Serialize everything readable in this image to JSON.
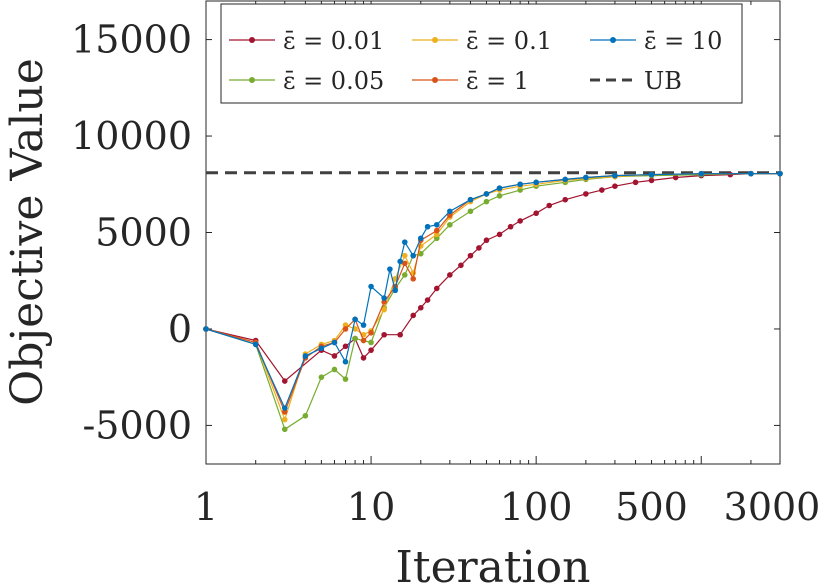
{
  "chart_data": {
    "type": "line",
    "xscale": "log",
    "xlim": [
      1,
      3000
    ],
    "ylim": [
      -7000,
      17000
    ],
    "xticks": [
      1,
      10,
      100,
      500,
      3000
    ],
    "xtick_labels": [
      "1",
      "10",
      "100",
      "500",
      "3000"
    ],
    "yticks": [
      -5000,
      0,
      5000,
      10000,
      15000
    ],
    "ytick_labels": [
      "-5000",
      "0",
      "5000",
      "10000",
      "15000"
    ],
    "xlabel": "Iteration",
    "ylabel": "Objective Value",
    "upper_bound": {
      "name": "UB",
      "value": 8100,
      "color": "#404040"
    },
    "series": [
      {
        "name": "ε̄ = 0.01",
        "color": "#A2142F",
        "x": [
          1,
          2,
          3,
          5,
          6,
          7,
          8,
          9,
          10,
          12,
          15,
          18,
          20,
          22,
          25,
          30,
          35,
          40,
          45,
          50,
          60,
          70,
          80,
          100,
          120,
          150,
          200,
          250,
          300,
          400,
          500,
          700,
          1000,
          1500,
          2000,
          3000
        ],
        "values": [
          0,
          -600,
          -2700,
          -1100,
          -1400,
          -900,
          -500,
          -1500,
          -1100,
          -300,
          -300,
          700,
          1100,
          1500,
          2100,
          2800,
          3300,
          3800,
          4200,
          4600,
          4900,
          5300,
          5600,
          6000,
          6400,
          6700,
          7000,
          7200,
          7400,
          7600,
          7700,
          7850,
          7950,
          8000,
          8050,
          8050
        ]
      },
      {
        "name": "ε̄ = 0.05",
        "color": "#77AC30",
        "x": [
          1,
          2,
          3,
          4,
          5,
          6,
          7,
          8,
          10,
          12,
          14,
          16,
          18,
          20,
          25,
          30,
          40,
          50,
          60,
          80,
          100,
          150,
          200,
          300,
          500,
          1000,
          2000,
          3000
        ],
        "values": [
          0,
          -800,
          -5200,
          -4500,
          -2500,
          -2100,
          -2600,
          -500,
          -700,
          1100,
          2100,
          2800,
          3800,
          3900,
          4700,
          5400,
          6100,
          6600,
          6900,
          7200,
          7400,
          7600,
          7750,
          7900,
          7950,
          8000,
          8050,
          8050
        ]
      },
      {
        "name": "ε̄ = 0.1",
        "color": "#EDB120",
        "x": [
          1,
          2,
          3,
          4,
          5,
          6,
          7,
          8,
          9,
          10,
          12,
          14,
          16,
          18,
          20,
          25,
          30,
          40,
          50,
          60,
          80,
          100,
          150,
          200,
          300,
          500,
          1000,
          2000,
          3000
        ],
        "values": [
          0,
          -700,
          -4700,
          -1300,
          -800,
          -600,
          200,
          0,
          -300,
          -100,
          1000,
          2600,
          3800,
          2900,
          4300,
          4900,
          5800,
          6600,
          7000,
          7200,
          7400,
          7500,
          7700,
          7800,
          7900,
          8000,
          8050,
          8050,
          8050
        ]
      },
      {
        "name": "ε̄ = 1",
        "color": "#D95319",
        "x": [
          1,
          2,
          3,
          4,
          5,
          6,
          7,
          8,
          9,
          10,
          12,
          14,
          16,
          18,
          20,
          25,
          30,
          40,
          50,
          60,
          80,
          100,
          150,
          200,
          300,
          500,
          1000,
          2000,
          3000
        ],
        "values": [
          0,
          -700,
          -4300,
          -1500,
          -900,
          -700,
          0,
          500,
          -600,
          -200,
          1400,
          2200,
          3400,
          2600,
          4600,
          5100,
          5900,
          6700,
          7000,
          7300,
          7500,
          7600,
          7750,
          7850,
          7950,
          8000,
          8050,
          8050,
          8050
        ]
      },
      {
        "name": "ε̄ = 10",
        "color": "#0072BD",
        "x": [
          1,
          2,
          3,
          4,
          5,
          6,
          7,
          8,
          9,
          10,
          12,
          13,
          14,
          15,
          16,
          18,
          20,
          22,
          25,
          30,
          40,
          50,
          60,
          80,
          100,
          150,
          200,
          300,
          500,
          1000,
          2000,
          3000
        ],
        "values": [
          0,
          -800,
          -4100,
          -1400,
          -1000,
          -700,
          -1700,
          500,
          200,
          2200,
          1600,
          3100,
          2000,
          3500,
          4500,
          3800,
          4700,
          5300,
          5400,
          6100,
          6700,
          7000,
          7300,
          7500,
          7600,
          7750,
          7850,
          7950,
          8000,
          8050,
          8050,
          8050
        ]
      }
    ],
    "legend": {
      "position": "top",
      "entries": [
        "ε̄ = 0.01",
        "ε̄ = 0.1",
        "ε̄ = 10",
        "ε̄ = 0.05",
        "ε̄ = 1",
        "UB"
      ]
    }
  }
}
